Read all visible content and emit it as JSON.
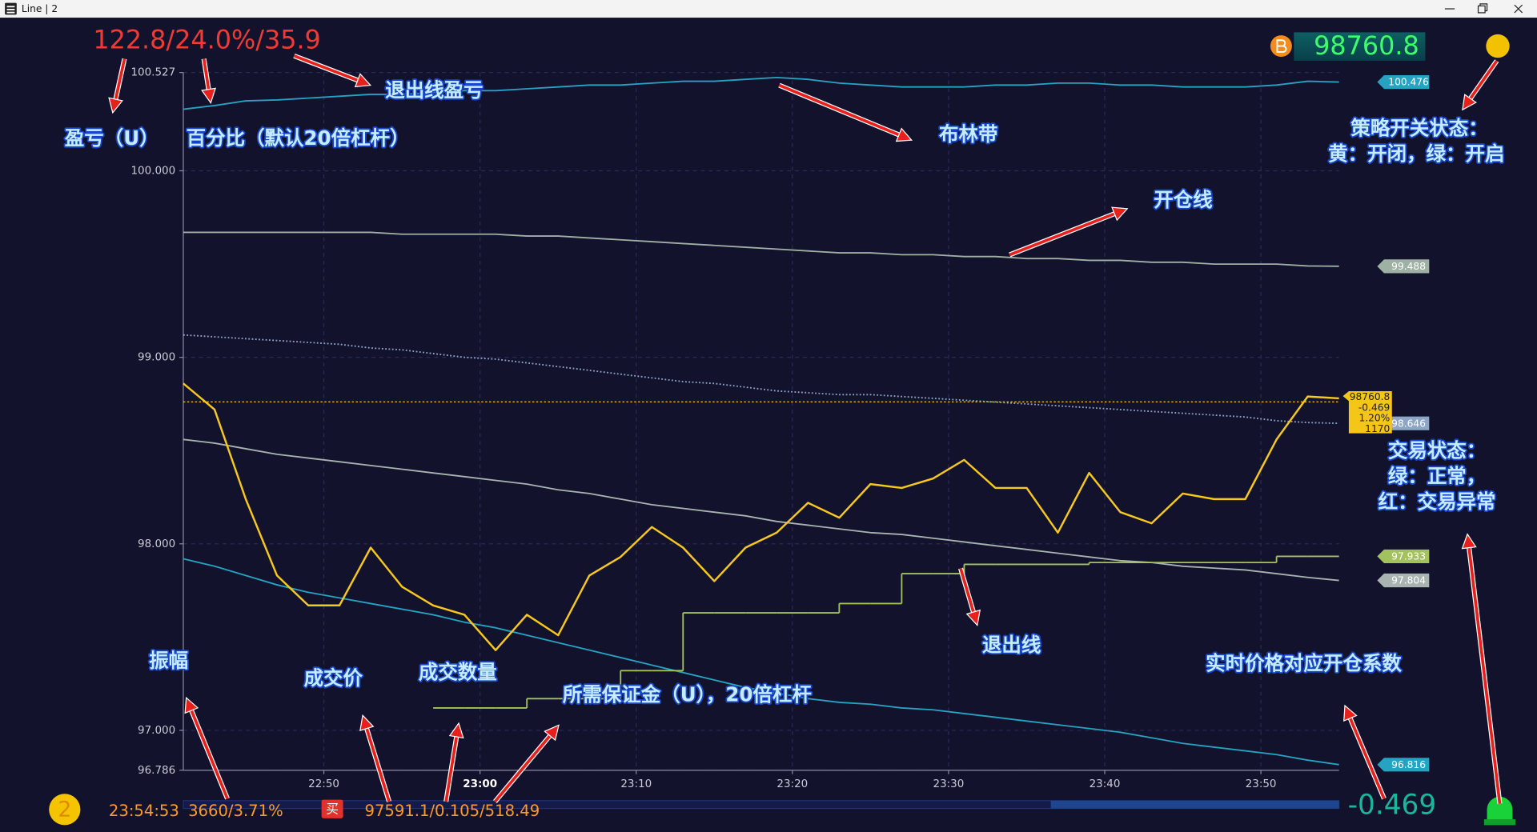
{
  "window": {
    "title": "Line | 2"
  },
  "header": {
    "pnl": "122.8/24.0%/35.9"
  },
  "footer": {
    "badge": "2",
    "time": "23:54:53",
    "amplitude": "3660/3.71%",
    "side": "买",
    "trade": "97591.1/0.105/518.49"
  },
  "chart_data": {
    "type": "line",
    "x": [
      "22:41",
      "22:43",
      "22:45",
      "22:47",
      "22:49",
      "22:51",
      "22:53",
      "22:55",
      "22:57",
      "22:59",
      "23:01",
      "23:03",
      "23:05",
      "23:07",
      "23:09",
      "23:11",
      "23:13",
      "23:15",
      "23:17",
      "23:19",
      "23:21",
      "23:23",
      "23:25",
      "23:27",
      "23:29",
      "23:31",
      "23:33",
      "23:35",
      "23:37",
      "23:39",
      "23:41",
      "23:43",
      "23:45",
      "23:47",
      "23:49",
      "23:51",
      "23:53",
      "23:55"
    ],
    "xlim": [
      "22:41",
      "23:55"
    ],
    "xticks": [
      "22:50",
      "23:00",
      "23:10",
      "23:20",
      "23:30",
      "23:40",
      "23:50"
    ],
    "ylim": [
      96.786,
      100.527
    ],
    "yticks": [
      96.786,
      {
        "value": 97,
        "label": "97.000"
      },
      {
        "value": 98,
        "label": "98.000"
      },
      {
        "value": 99,
        "label": "99.000"
      },
      {
        "value": 100,
        "label": "100.000"
      },
      100.527
    ],
    "grid": true,
    "series": [
      {
        "color": "#27a3c2",
        "end_label": true,
        "values": [
          100.33,
          100.35,
          100.375,
          100.38,
          100.39,
          100.4,
          100.41,
          100.41,
          100.42,
          100.43,
          100.43,
          100.44,
          100.45,
          100.46,
          100.46,
          100.47,
          100.48,
          100.48,
          100.49,
          100.5,
          100.49,
          100.47,
          100.46,
          100.45,
          100.45,
          100.45,
          100.46,
          100.46,
          100.47,
          100.47,
          100.46,
          100.46,
          100.45,
          100.45,
          100.45,
          100.46,
          100.48,
          100.476
        ]
      },
      {
        "color": "#9fb0a4",
        "end_label": true,
        "values": [
          99.67,
          99.67,
          99.67,
          99.67,
          99.67,
          99.67,
          99.67,
          99.66,
          99.66,
          99.66,
          99.66,
          99.65,
          99.65,
          99.64,
          99.63,
          99.62,
          99.61,
          99.6,
          99.59,
          99.58,
          99.57,
          99.56,
          99.56,
          99.55,
          99.55,
          99.54,
          99.54,
          99.53,
          99.53,
          99.52,
          99.52,
          99.51,
          99.51,
          99.5,
          99.5,
          99.5,
          99.49,
          99.488
        ]
      },
      {
        "color": "#8ea6c6",
        "style": "dotted",
        "end_label": true,
        "values": [
          99.12,
          99.11,
          99.1,
          99.09,
          99.08,
          99.07,
          99.05,
          99.04,
          99.02,
          99.0,
          98.99,
          98.97,
          98.95,
          98.93,
          98.91,
          98.89,
          98.87,
          98.86,
          98.84,
          98.82,
          98.81,
          98.8,
          98.8,
          98.79,
          98.78,
          98.77,
          98.76,
          98.75,
          98.74,
          98.73,
          98.72,
          98.71,
          98.7,
          98.69,
          98.68,
          98.66,
          98.65,
          98.646
        ]
      },
      {
        "color": "#a9b4b0",
        "end_label": true,
        "values": [
          98.56,
          98.54,
          98.51,
          98.48,
          98.46,
          98.44,
          98.42,
          98.4,
          98.38,
          98.36,
          98.34,
          98.32,
          98.29,
          98.27,
          98.24,
          98.21,
          98.19,
          98.17,
          98.15,
          98.12,
          98.1,
          98.08,
          98.06,
          98.05,
          98.03,
          98.01,
          97.99,
          97.97,
          97.95,
          97.93,
          97.91,
          97.9,
          97.88,
          97.87,
          97.86,
          97.84,
          97.82,
          97.804
        ]
      },
      {
        "color": "#27a3c2",
        "end_label": true,
        "values": [
          97.92,
          97.88,
          97.83,
          97.78,
          97.74,
          97.71,
          97.68,
          97.65,
          97.62,
          97.58,
          97.55,
          97.51,
          97.47,
          97.43,
          97.39,
          97.35,
          97.31,
          97.27,
          97.23,
          97.2,
          97.17,
          97.15,
          97.14,
          97.12,
          97.11,
          97.09,
          97.07,
          97.05,
          97.03,
          97.01,
          96.99,
          96.96,
          96.93,
          96.91,
          96.89,
          96.87,
          96.84,
          96.816
        ]
      },
      {
        "color": "#a3c25e",
        "step": true,
        "end_label": true,
        "values": [
          null,
          null,
          null,
          null,
          null,
          null,
          null,
          null,
          97.12,
          97.12,
          97.12,
          97.17,
          97.17,
          97.17,
          97.32,
          97.32,
          97.63,
          97.63,
          97.63,
          97.63,
          97.63,
          97.68,
          97.68,
          97.84,
          97.84,
          97.89,
          97.89,
          97.89,
          97.89,
          97.9,
          97.9,
          97.9,
          97.9,
          97.9,
          97.9,
          97.933,
          97.933,
          97.933
        ]
      },
      {
        "color": "#f7c81e",
        "width": 2,
        "values": [
          98.86,
          98.72,
          98.24,
          97.83,
          97.67,
          97.67,
          97.98,
          97.77,
          97.67,
          97.62,
          97.43,
          97.62,
          97.51,
          97.83,
          97.93,
          98.09,
          97.98,
          97.8,
          97.98,
          98.06,
          98.22,
          98.14,
          98.32,
          98.3,
          98.35,
          98.45,
          98.3,
          98.3,
          98.06,
          98.38,
          98.17,
          98.11,
          98.27,
          98.24,
          98.24,
          98.56,
          98.79,
          98.78
        ]
      }
    ],
    "current_price": {
      "value": 98.7608,
      "label": "98760.8"
    },
    "coefficient": "-0.469",
    "price_box": {
      "change": "1.20%",
      "count": "1170"
    }
  },
  "annotations": [
    "盈亏（U）",
    "百分比（默认20倍杠杆）",
    "退出线盈亏",
    "布林带",
    "开仓线",
    "策略开关状态：",
    "黄：开闭，绿：开启",
    "交易状态：",
    "绿：正常，",
    "红：交易异常",
    "退出线",
    "振幅",
    "成交价",
    "成交数量",
    "所需保证金（U），20倍杠杆",
    "实时价格对应开仓系数"
  ]
}
